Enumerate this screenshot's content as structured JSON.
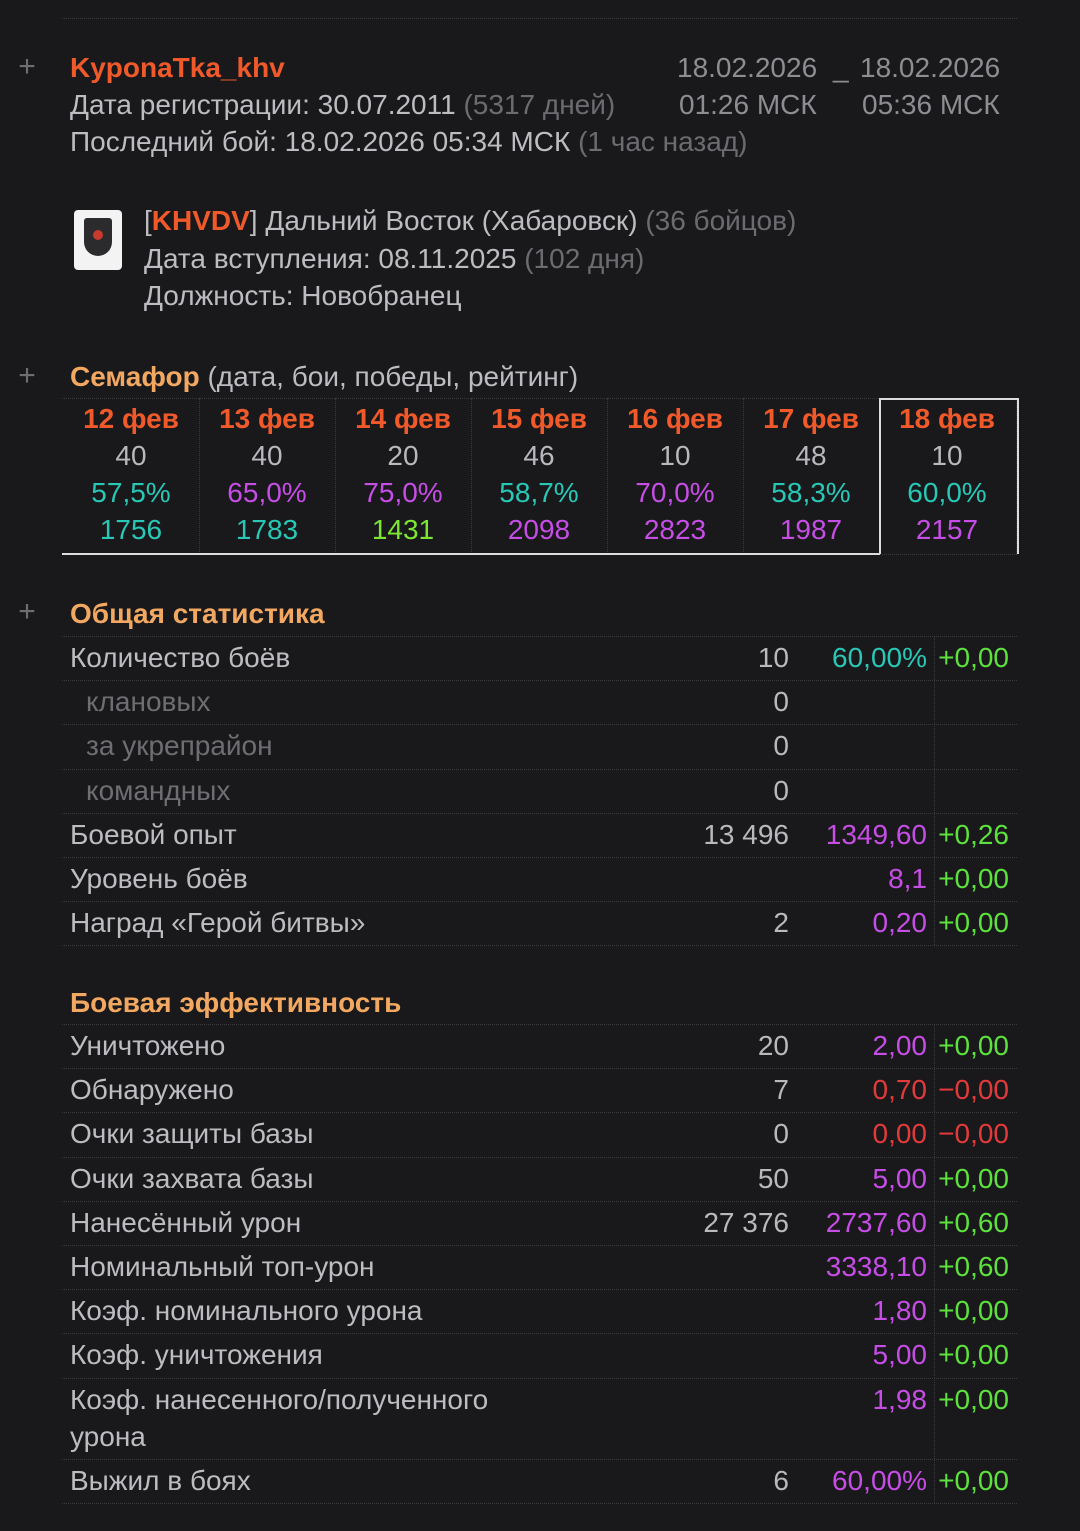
{
  "player": {
    "name": "KyponaTka_khv",
    "reg_label": "Дата регистрации: 30.07.2011",
    "reg_days": "(5317 дней)",
    "last_label": "Последний бой: 18.02.2026 05:34 МСК",
    "last_ago": "(1 час назад)",
    "period_from_date": "18.02.2026",
    "period_sep": "_",
    "period_to_date": "18.02.2026",
    "period_from_time": "01:26 МСК",
    "period_to_time": "05:36 МСК"
  },
  "clan": {
    "bracket_open": "[",
    "tag": "KHVDV",
    "bracket_close": "]",
    "name": "Дальний Восток (Хабаровск)",
    "members": "(36 бойцов)",
    "join_label": "Дата вступления: 08.11.2025",
    "join_days": "(102 дня)",
    "position": "Должность: Новобранец"
  },
  "semaphore": {
    "title": "Семафор",
    "subtitle": "(дата, бои, победы, рейтинг)",
    "days": [
      {
        "date": "12 фев",
        "battles": "40",
        "wins": "57,5%",
        "rating": "1756",
        "wins_color": "#29c7b6",
        "rating_color": "#29c7b6"
      },
      {
        "date": "13 фев",
        "battles": "40",
        "wins": "65,0%",
        "rating": "1783",
        "wins_color": "#c64de6",
        "rating_color": "#29c7b6"
      },
      {
        "date": "14 фев",
        "battles": "20",
        "wins": "75,0%",
        "rating": "1431",
        "wins_color": "#c64de6",
        "rating_color": "#7de633"
      },
      {
        "date": "15 фев",
        "battles": "46",
        "wins": "58,7%",
        "rating": "2098",
        "wins_color": "#29c7b6",
        "rating_color": "#c64de6"
      },
      {
        "date": "16 фев",
        "battles": "10",
        "wins": "70,0%",
        "rating": "2823",
        "wins_color": "#c64de6",
        "rating_color": "#c64de6"
      },
      {
        "date": "17 фев",
        "battles": "48",
        "wins": "58,3%",
        "rating": "1987",
        "wins_color": "#29c7b6",
        "rating_color": "#c64de6"
      },
      {
        "date": "18 фев",
        "battles": "10",
        "wins": "60,0%",
        "rating": "2157",
        "wins_color": "#29c7b6",
        "rating_color": "#c64de6"
      }
    ]
  },
  "general": {
    "title": "Общая статистика",
    "rows": [
      {
        "label": "Количество боёв",
        "v1": "10",
        "v2": "60,00%",
        "v3": "+0,00",
        "c2": "#29c7b6",
        "c3": "#5ce13d",
        "sub": false
      },
      {
        "label": "клановых",
        "v1": "0",
        "v2": "",
        "v3": "",
        "c2": "",
        "c3": "",
        "sub": true
      },
      {
        "label": "за укрепрайон",
        "v1": "0",
        "v2": "",
        "v3": "",
        "c2": "",
        "c3": "",
        "sub": true
      },
      {
        "label": "командных",
        "v1": "0",
        "v2": "",
        "v3": "",
        "c2": "",
        "c3": "",
        "sub": true
      },
      {
        "label": "Боевой опыт",
        "v1": "13 496",
        "v2": "1349,60",
        "v3": "+0,26",
        "c2": "#c64de6",
        "c3": "#5ce13d",
        "sub": false
      },
      {
        "label": "Уровень боёв",
        "v1": "",
        "v2": "8,1",
        "v3": "+0,00",
        "c2": "#c64de6",
        "c3": "#5ce13d",
        "sub": false
      },
      {
        "label": "Наград «Герой битвы»",
        "v1": "2",
        "v2": "0,20",
        "v3": "+0,00",
        "c2": "#c64de6",
        "c3": "#5ce13d",
        "sub": false
      }
    ]
  },
  "efficiency": {
    "title": "Боевая эффективность",
    "rows": [
      {
        "label": "Уничтожено",
        "v1": "20",
        "v2": "2,00",
        "v3": "+0,00",
        "c2": "#c64de6",
        "c3": "#5ce13d"
      },
      {
        "label": "Обнаружено",
        "v1": "7",
        "v2": "0,70",
        "v3": "−0,00",
        "c2": "#e23a3a",
        "c3": "#e23a3a"
      },
      {
        "label": "Очки защиты базы",
        "v1": "0",
        "v2": "0,00",
        "v3": "−0,00",
        "c2": "#e23a3a",
        "c3": "#e23a3a"
      },
      {
        "label": "Очки захвата базы",
        "v1": "50",
        "v2": "5,00",
        "v3": "+0,00",
        "c2": "#c64de6",
        "c3": "#5ce13d"
      },
      {
        "label": "Нанесённый урон",
        "v1": "27 376",
        "v2": "2737,60",
        "v3": "+0,60",
        "c2": "#c64de6",
        "c3": "#5ce13d"
      },
      {
        "label": "Номинальный топ-урон",
        "v1": "",
        "v2": "3338,10",
        "v3": "+0,60",
        "c2": "#c64de6",
        "c3": "#5ce13d"
      },
      {
        "label": "Коэф. номинального урона",
        "v1": "",
        "v2": "1,80",
        "v3": "+0,00",
        "c2": "#c64de6",
        "c3": "#5ce13d"
      },
      {
        "label": "Коэф. уничтожения",
        "v1": "",
        "v2": "5,00",
        "v3": "+0,00",
        "c2": "#c64de6",
        "c3": "#5ce13d"
      },
      {
        "label": "Коэф. нанесенного/полученного",
        "label2": "урона",
        "v1": "",
        "v2": "1,98",
        "v3": "+0,00",
        "c2": "#c64de6",
        "c3": "#5ce13d"
      },
      {
        "label": "Выжил в боях",
        "v1": "6",
        "v2": "60,00%",
        "v3": "+0,00",
        "c2": "#c64de6",
        "c3": "#5ce13d"
      }
    ]
  }
}
